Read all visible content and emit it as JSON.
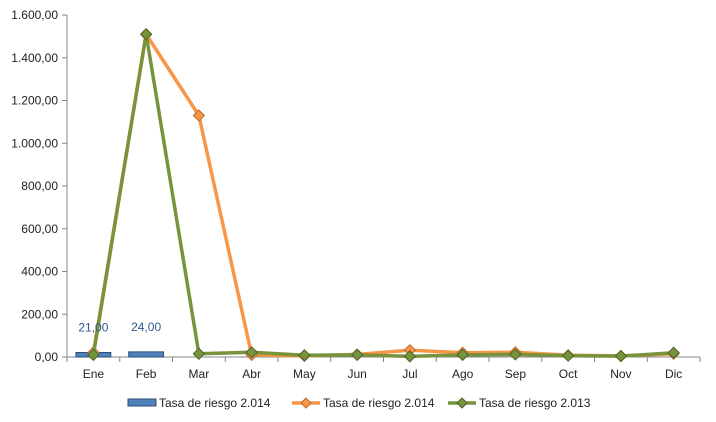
{
  "chart_data": {
    "type": "bar",
    "categories": [
      "Ene",
      "Feb",
      "Mar",
      "Abr",
      "May",
      "Jun",
      "Jul",
      "Ago",
      "Sep",
      "Oct",
      "Nov",
      "Dic"
    ],
    "ylim": [
      0,
      1600
    ],
    "yticks": [
      "0,00",
      "200,00",
      "400,00",
      "600,00",
      "800,00",
      "1.000,00",
      "1.200,00",
      "1.400,00",
      "1.600,00"
    ],
    "grid": false,
    "legend_position": "bottom",
    "series": [
      {
        "name": "Tasa de riesgo 2.014",
        "kind": "bar",
        "color": "#4f81bd",
        "values": [
          21,
          24,
          null,
          null,
          null,
          null,
          null,
          null,
          null,
          null,
          null,
          null
        ],
        "labels": [
          "21,00",
          "24,00"
        ]
      },
      {
        "name": "Tasa de riesgo 2.014",
        "kind": "line",
        "marker": "diamond",
        "color": "#f79646",
        "values": [
          21,
          1510,
          1130,
          10,
          5,
          12,
          32,
          20,
          22,
          8,
          5,
          15
        ]
      },
      {
        "name": "Tasa de riesgo 2.013",
        "kind": "line",
        "marker": "diamond",
        "color": "#77933c",
        "values": [
          10,
          1510,
          15,
          22,
          8,
          10,
          3,
          10,
          12,
          6,
          4,
          20
        ]
      }
    ]
  }
}
